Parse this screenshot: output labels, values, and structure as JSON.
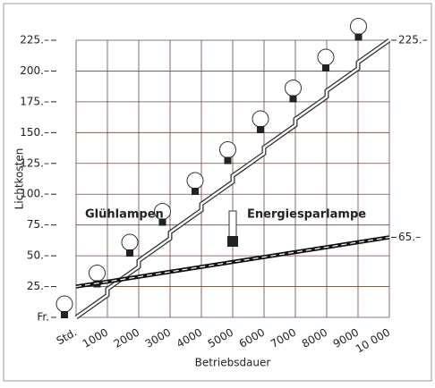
{
  "chart_data": {
    "type": "line",
    "x_label": "Betriebsdauer",
    "y_label": "Lichtkosten",
    "xlim": [
      0,
      10000
    ],
    "ylim": [
      0,
      225
    ],
    "xticks": [
      {
        "value": 0,
        "label": "Std."
      },
      1000,
      2000,
      3000,
      4000,
      5000,
      6000,
      7000,
      8000,
      9000,
      {
        "value": 10000,
        "label": "10 000"
      }
    ],
    "yticks": [
      {
        "value": 0,
        "label": "Fr."
      },
      {
        "value": 25,
        "label": "25.–"
      },
      {
        "value": 50,
        "label": "50.–"
      },
      {
        "value": 75,
        "label": "75.–"
      },
      {
        "value": 100,
        "label": "100.–"
      },
      {
        "value": 125,
        "label": "125.–"
      },
      {
        "value": 150,
        "label": "150.–"
      },
      {
        "value": 175,
        "label": "175.–"
      },
      {
        "value": 200,
        "label": "200.–"
      },
      {
        "value": 225,
        "label": "225.–"
      }
    ],
    "grid": true,
    "series": [
      {
        "name": "Glühlampen",
        "color": "#333333",
        "x": [
          0,
          1000,
          1000,
          2000,
          2000,
          3000,
          3000,
          4000,
          4000,
          5000,
          5000,
          6000,
          6000,
          7000,
          7000,
          8000,
          8000,
          9000,
          9000,
          10000
        ],
        "values": [
          0,
          18,
          23,
          41,
          46,
          64,
          69,
          87,
          92,
          110,
          115,
          133,
          138,
          156,
          161,
          179,
          184,
          202,
          207,
          225
        ]
      },
      {
        "name": "Energiesparlampe",
        "color": "#111111",
        "x": [
          0,
          10000
        ],
        "values": [
          25,
          65
        ]
      }
    ],
    "annotations": [
      {
        "text": "225.–",
        "x": 10000,
        "y": 225
      },
      {
        "text": "65.–",
        "x": 10000,
        "y": 65
      }
    ]
  }
}
